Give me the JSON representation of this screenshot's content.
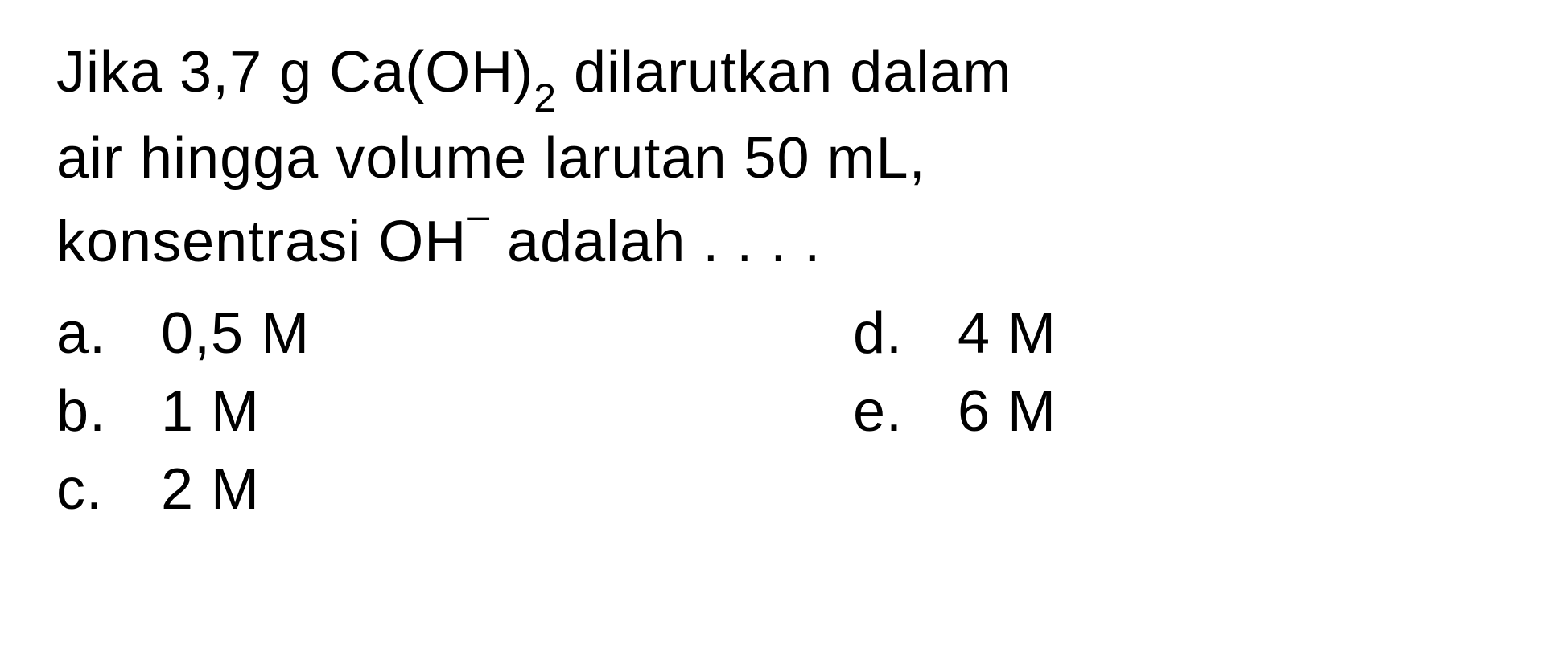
{
  "question": {
    "line1_part1": "Jika 3,7 g Ca(OH)",
    "line1_sub": "2",
    "line1_part2": " dilarutkan dalam",
    "line2": "air hingga volume larutan 50 mL,",
    "line3_part1": "konsentrasi OH",
    "line3_sup": "–",
    "line3_part2": " adalah . . . ."
  },
  "options": {
    "a": {
      "letter": "a.",
      "value": "0,5 M"
    },
    "b": {
      "letter": "b.",
      "value": "1 M"
    },
    "c": {
      "letter": "c.",
      "value": "2 M"
    },
    "d": {
      "letter": "d.",
      "value": "4 M"
    },
    "e": {
      "letter": "e.",
      "value": "6 M"
    }
  },
  "styling": {
    "background_color": "#ffffff",
    "text_color": "#000000",
    "font_size_main": 72,
    "font_size_sub": 50,
    "font_weight": 500,
    "line_height": 1.4,
    "letter_spacing": 1
  }
}
